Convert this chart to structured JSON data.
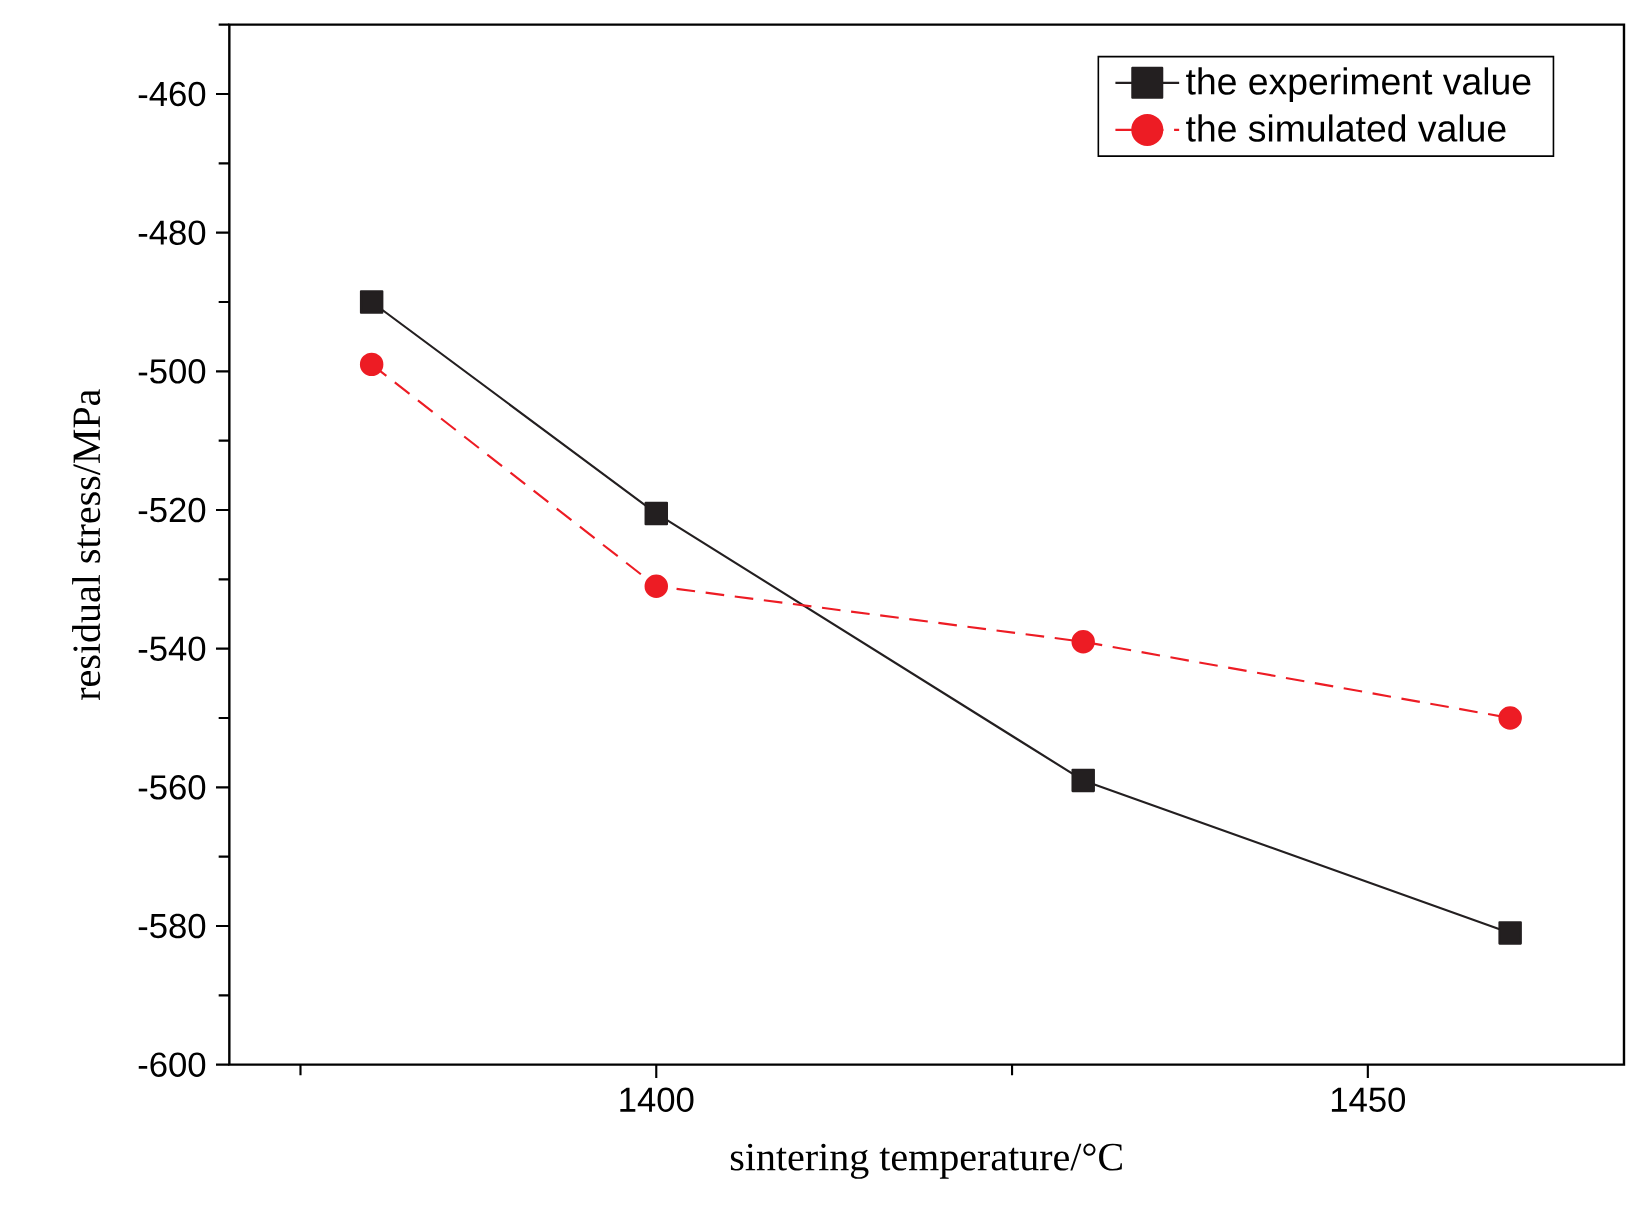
{
  "chart_data": {
    "type": "line",
    "xlabel": "sintering temperature/°C",
    "ylabel": "residual stress/MPa",
    "x": [
      1380,
      1400,
      1430,
      1460
    ],
    "series": [
      {
        "name": "the experiment value",
        "color": "#231f20",
        "values": [
          -490,
          -520.5,
          -559,
          -581
        ],
        "marker": "square",
        "line_style": "solid"
      },
      {
        "name": "the simulated value",
        "color": "#ed1c24",
        "values": [
          -499,
          -531,
          -539,
          -550
        ],
        "marker": "circle",
        "line_style": "dashed"
      }
    ],
    "xlim": [
      1370,
      1468
    ],
    "ylim": [
      -600,
      -450
    ],
    "xticks": [
      {
        "value": 1375,
        "label": null
      },
      1400,
      {
        "value": 1425,
        "label": null
      },
      1450
    ],
    "yticks": [
      -600,
      {
        "value": -590,
        "label": null
      },
      -580,
      {
        "value": -570,
        "label": null
      },
      -560,
      {
        "value": -550,
        "label": null
      },
      -540,
      {
        "value": -530,
        "label": null
      },
      -520,
      {
        "value": -510,
        "label": null
      },
      -500,
      {
        "value": -490,
        "label": null
      },
      -480,
      {
        "value": -470,
        "label": null
      },
      -460,
      {
        "value": -450,
        "label": null
      }
    ],
    "grid": false,
    "legend": "top right"
  }
}
